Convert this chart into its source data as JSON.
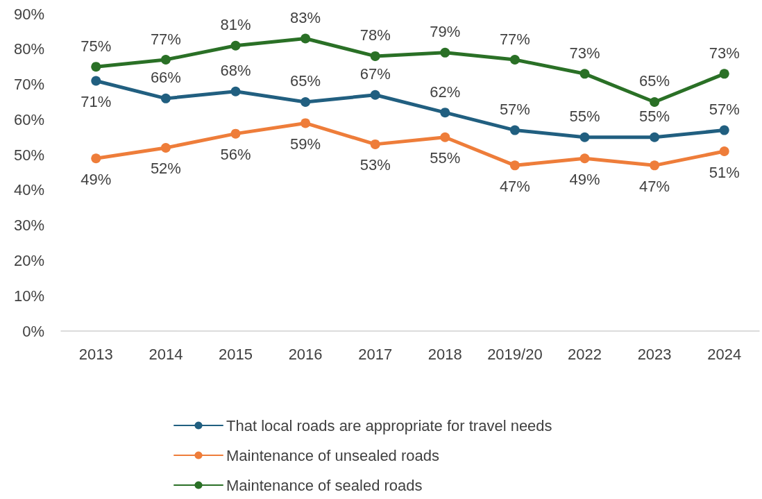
{
  "chart_data": {
    "type": "line",
    "categories": [
      "2013",
      "2014",
      "2015",
      "2016",
      "2017",
      "2018",
      "2019/20",
      "2022",
      "2023",
      "2024"
    ],
    "series": [
      {
        "name": "That local roads are appropriate for travel needs",
        "color": "#215f80",
        "values": [
          71,
          66,
          68,
          65,
          67,
          62,
          57,
          55,
          55,
          57
        ],
        "value_labels": [
          "71%",
          "66%",
          "68%",
          "65%",
          "67%",
          "62%",
          "57%",
          "55%",
          "55%",
          "57%"
        ]
      },
      {
        "name": "Maintenance of unsealed roads",
        "color": "#ee7d3a",
        "values": [
          49,
          52,
          56,
          59,
          53,
          55,
          47,
          49,
          47,
          51
        ],
        "value_labels": [
          "49%",
          "52%",
          "56%",
          "59%",
          "53%",
          "55%",
          "47%",
          "49%",
          "47%",
          "51%"
        ]
      },
      {
        "name": "Maintenance of sealed roads",
        "color": "#2a7026",
        "values": [
          75,
          77,
          81,
          83,
          78,
          79,
          77,
          73,
          65,
          73
        ],
        "value_labels": [
          "75%",
          "77%",
          "81%",
          "83%",
          "78%",
          "79%",
          "77%",
          "73%",
          "65%",
          "73%"
        ]
      }
    ],
    "ylim": [
      0,
      90
    ],
    "yticks": [
      {
        "value": 0,
        "label": "0%"
      },
      {
        "value": 10,
        "label": "10%"
      },
      {
        "value": 20,
        "label": "20%"
      },
      {
        "value": 30,
        "label": "30%"
      },
      {
        "value": 40,
        "label": "40%"
      },
      {
        "value": 50,
        "label": "50%"
      },
      {
        "value": 60,
        "label": "60%"
      },
      {
        "value": 70,
        "label": "70%"
      },
      {
        "value": 80,
        "label": "80%"
      },
      {
        "value": 90,
        "label": "90%"
      }
    ],
    "grid": false,
    "legend": "bottom",
    "marker": "circle",
    "line_style": "solid"
  }
}
